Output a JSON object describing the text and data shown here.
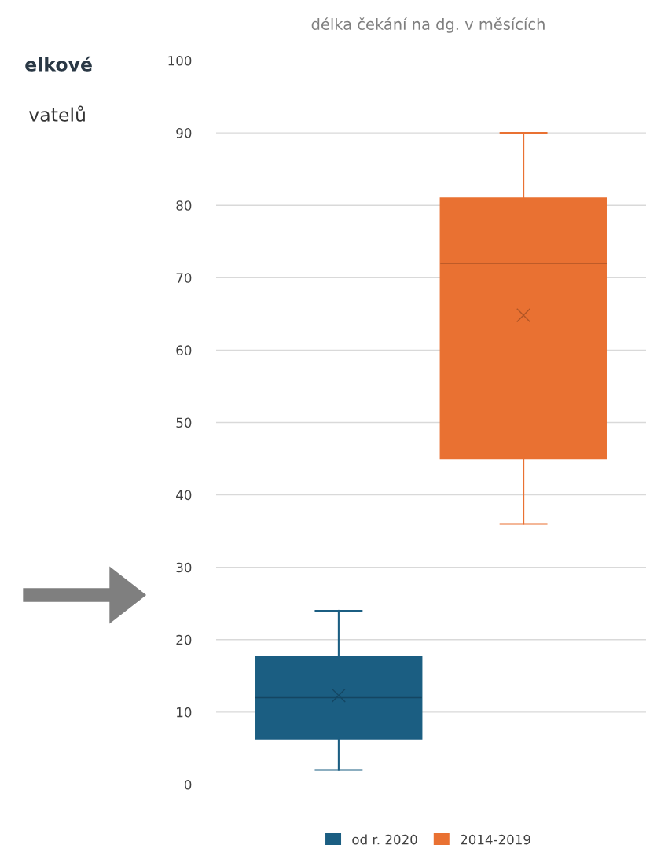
{
  "chart_data": {
    "type": "box",
    "title": "délka čekání na dg. v měsících",
    "categories": [
      null
    ],
    "series": [
      {
        "name": "od r. 2020",
        "color": "#1b5e82",
        "boxes": [
          {
            "low": 2,
            "q1": 6.3,
            "median": 12,
            "q3": 17.7,
            "high": 24,
            "mean": 12.3
          }
        ]
      },
      {
        "name": "2014-2019",
        "color": "#e97132",
        "boxes": [
          {
            "low": 36,
            "q1": 45,
            "median": 72,
            "q3": 81,
            "high": 90,
            "mean": 64.8
          }
        ]
      }
    ],
    "ylim": [
      0,
      100
    ],
    "yticks": [
      0,
      10,
      20,
      30,
      40,
      50,
      60,
      70,
      80,
      90,
      100
    ],
    "grid": "y",
    "legend": "bottom",
    "marker": "cross",
    "annotations": [
      "elkové",
      "vatelů"
    ]
  }
}
